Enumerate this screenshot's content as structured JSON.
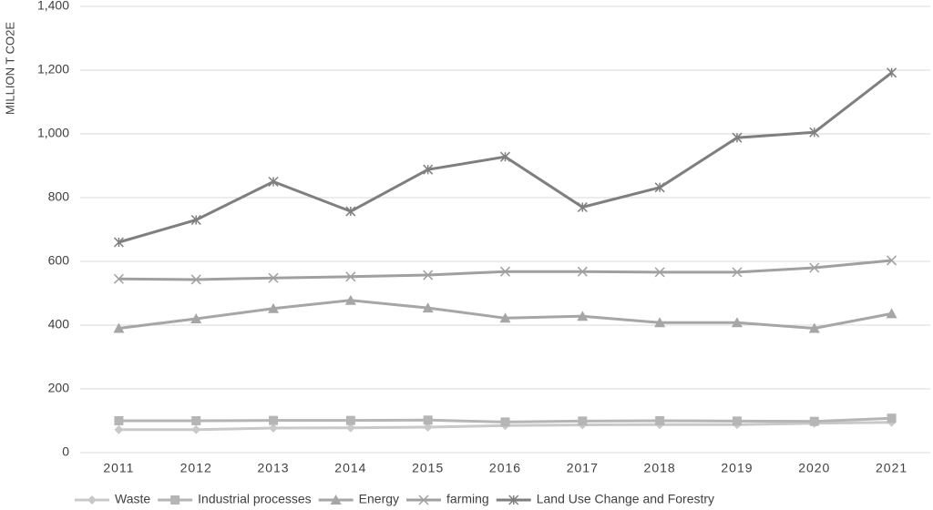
{
  "chart_data": {
    "type": "line",
    "y_label": "MILLION T CO2E",
    "categories": [
      "2011",
      "2012",
      "2013",
      "2014",
      "2015",
      "2016",
      "2017",
      "2018",
      "2019",
      "2020",
      "2021"
    ],
    "series": [
      {
        "name": "Waste",
        "color": "#c9c9c9",
        "marker": "diamond",
        "values": [
          72,
          72,
          77,
          78,
          80,
          85,
          87,
          88,
          88,
          92,
          95
        ]
      },
      {
        "name": "Industrial processes",
        "color": "#b5b5b5",
        "marker": "square",
        "values": [
          100,
          100,
          101,
          101,
          102,
          96,
          99,
          100,
          99,
          98,
          108
        ]
      },
      {
        "name": "Energy",
        "color": "#a6a6a6",
        "marker": "triangle",
        "values": [
          390,
          420,
          452,
          478,
          454,
          422,
          428,
          408,
          408,
          390,
          436
        ]
      },
      {
        "name": "farming",
        "color": "#a0a0a0",
        "marker": "x",
        "values": [
          545,
          543,
          548,
          552,
          557,
          568,
          568,
          566,
          566,
          580,
          603
        ]
      },
      {
        "name": "Land Use Change and Forestry",
        "color": "#7f7f7f",
        "marker": "star",
        "values": [
          660,
          730,
          850,
          757,
          888,
          928,
          770,
          832,
          988,
          1005,
          1192
        ]
      }
    ],
    "ylim": [
      0,
      1400
    ],
    "yticks": [
      0,
      200,
      400,
      600,
      800,
      {
        "value": 1000,
        "label": "1,000"
      },
      {
        "value": 1200,
        "label": "1,200"
      },
      {
        "value": 1400,
        "label": "1,400"
      }
    ],
    "grid": true,
    "legend": "bottom"
  }
}
